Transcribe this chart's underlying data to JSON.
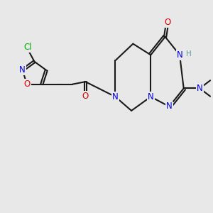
{
  "bg": "#e8e8e8",
  "bond_color": "#1a1a1a",
  "bw": 1.5,
  "dg": 0.055,
  "N_color": "#0000dd",
  "O_color": "#dd0000",
  "Cl_color": "#00aa00",
  "H_color": "#5a9a9a",
  "C_color": "#1a1a1a",
  "fs": 8.5,
  "xlim": [
    0,
    10
  ],
  "ylim": [
    0,
    10
  ]
}
